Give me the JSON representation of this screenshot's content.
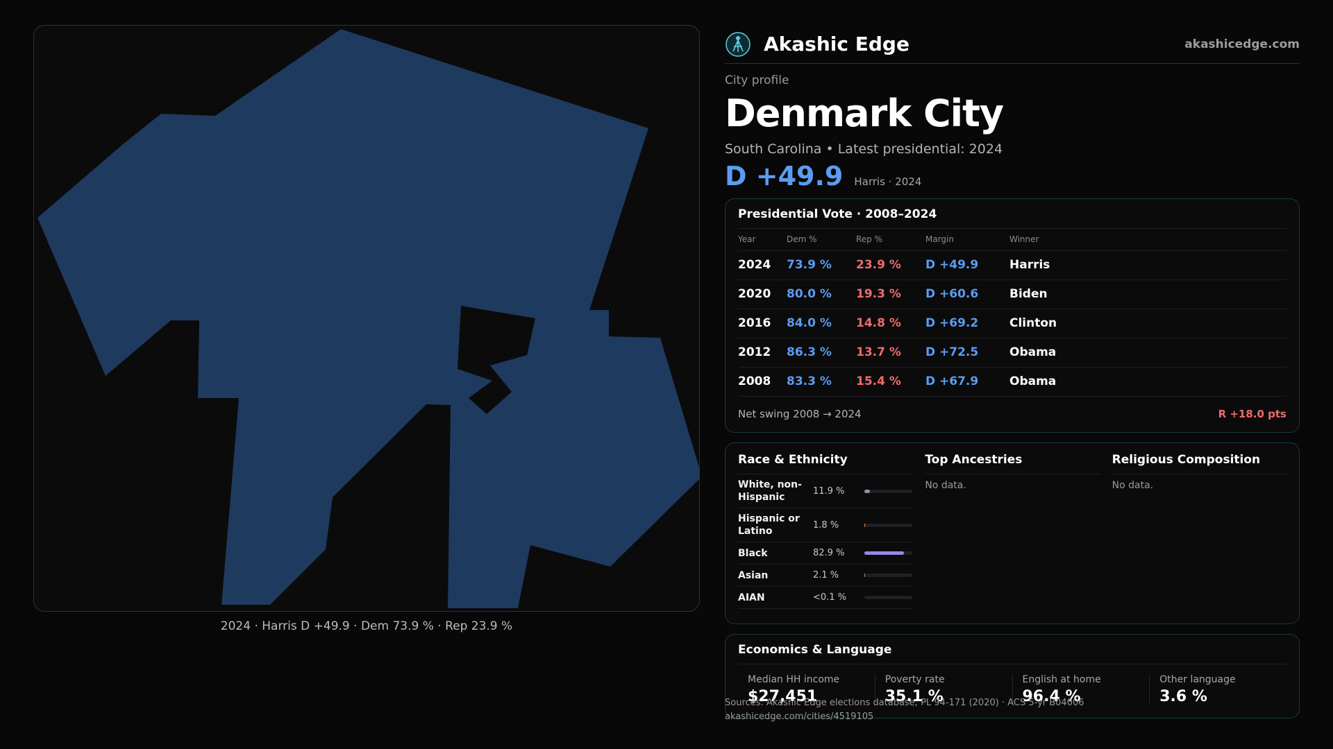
{
  "brand": {
    "name": "Akashic Edge",
    "url": "akashicedge.com",
    "logo_icon": "akashic-edge-logo-icon",
    "accent": "#5fd1e0"
  },
  "profile": {
    "eyebrow": "City profile",
    "title": "Denmark City",
    "subtitle": "South Carolina • Latest presidential: 2024",
    "margin_big": "D +49.9",
    "margin_small": "Harris · 2024"
  },
  "map": {
    "caption": "2024 · Harris D +49.9 · Dem 73.9 % · Rep 23.9 %",
    "fill_color": "#1f3a5f"
  },
  "vote": {
    "title": "Presidential Vote · 2008–2024",
    "headers": {
      "year": "Year",
      "dem": "Dem %",
      "rep": "Rep %",
      "margin": "Margin",
      "winner": "Winner"
    },
    "rows": [
      {
        "year": "2024",
        "dem": "73.9 %",
        "rep": "23.9 %",
        "margin": "D +49.9",
        "winner": "Harris"
      },
      {
        "year": "2020",
        "dem": "80.0 %",
        "rep": "19.3 %",
        "margin": "D +60.6",
        "winner": "Biden"
      },
      {
        "year": "2016",
        "dem": "84.0 %",
        "rep": "14.8 %",
        "margin": "D +69.2",
        "winner": "Clinton"
      },
      {
        "year": "2012",
        "dem": "86.3 %",
        "rep": "13.7 %",
        "margin": "D +72.5",
        "winner": "Obama"
      },
      {
        "year": "2008",
        "dem": "83.3 %",
        "rep": "15.4 %",
        "margin": "D +67.9",
        "winner": "Obama"
      }
    ],
    "swing_label": "Net swing 2008 → 2024",
    "swing_value": "R +18.0 pts"
  },
  "race": {
    "title": "Race & Ethnicity",
    "rows": [
      {
        "label": "White, non-Hispanic",
        "pct": "11.9 %",
        "share": 0.119,
        "color": "#8a94a6"
      },
      {
        "label": "Hispanic or Latino",
        "pct": "1.8 %",
        "share": 0.018,
        "color": "#e08a4a"
      },
      {
        "label": "Black",
        "pct": "82.9 %",
        "share": 0.829,
        "color": "#9b86e8"
      },
      {
        "label": "Asian",
        "pct": "2.1 %",
        "share": 0.021,
        "color": "#4ab89a"
      },
      {
        "label": "AIAN",
        "pct": "<0.1 %",
        "share": 0.0,
        "color": "#c9a04a"
      }
    ]
  },
  "ancestries": {
    "title": "Top Ancestries",
    "empty": "No data."
  },
  "religion": {
    "title": "Religious Composition",
    "empty": "No data."
  },
  "economics": {
    "title": "Economics & Language",
    "cells": [
      {
        "label": "Median HH income",
        "value": "$27,451"
      },
      {
        "label": "Poverty rate",
        "value": "35.1 %"
      },
      {
        "label": "English at home",
        "value": "96.4 %"
      },
      {
        "label": "Other language",
        "value": "3.6 %"
      }
    ]
  },
  "source": {
    "line1": "Sources: Akashic Edge elections database; PL 94-171 (2020) · ACS 5-yr B04006",
    "line2": "akashicedge.com/cities/4519105"
  }
}
